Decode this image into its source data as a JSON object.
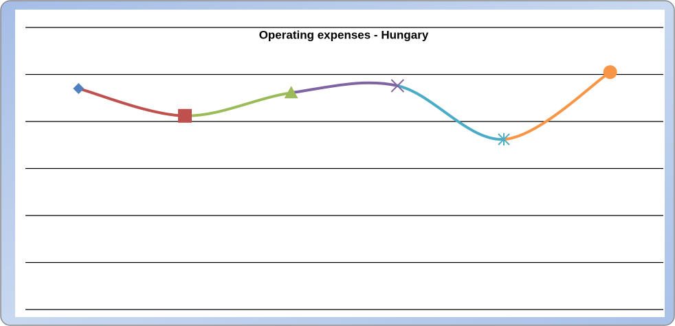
{
  "chart_data": {
    "type": "line",
    "title": "Operating expenses - Hungary",
    "categories": [
      null,
      null,
      null,
      null,
      null,
      null
    ],
    "values": [
      4.7,
      4.12,
      4.61,
      4.76,
      3.62,
      5.05
    ],
    "colors": [
      "#4f81bd",
      "#c0504d",
      "#9bbb59",
      "#8064a2",
      "#4bacc6",
      "#f79646"
    ],
    "markers": [
      "diamond",
      "square",
      "triangle",
      "x",
      "star",
      "circle"
    ],
    "smooth": true,
    "ylim": [
      0,
      6
    ],
    "yticks": [
      0,
      1,
      2,
      3,
      4,
      5,
      6
    ],
    "grid": true
  }
}
